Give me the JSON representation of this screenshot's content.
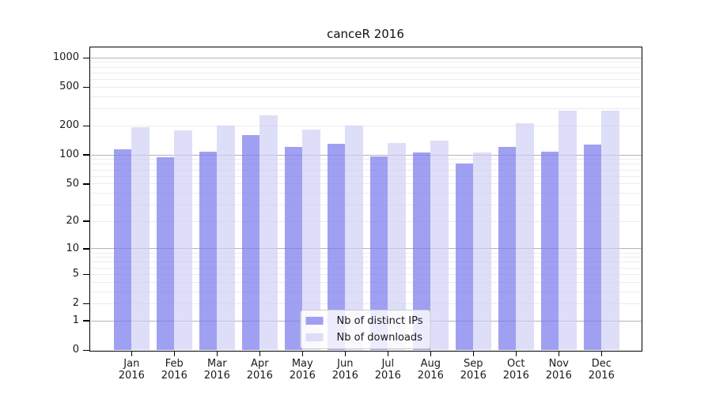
{
  "chart_data": {
    "type": "bar",
    "title": "canceR 2016",
    "categories": [
      "Jan",
      "Feb",
      "Mar",
      "Apr",
      "May",
      "Jun",
      "Jul",
      "Aug",
      "Sep",
      "Oct",
      "Nov",
      "Dec"
    ],
    "year_label": "2016",
    "series": [
      {
        "name": "Nb of distinct IPs",
        "values": [
          114,
          94,
          108,
          160,
          122,
          130,
          96,
          107,
          82,
          120,
          108,
          129
        ]
      },
      {
        "name": "Nb of downloads",
        "values": [
          192,
          181,
          201,
          258,
          184,
          202,
          133,
          140,
          107,
          211,
          285,
          285
        ]
      }
    ],
    "yscale": "log10(value+1)",
    "ytick_labels": [
      1000,
      500,
      200,
      100,
      50,
      20,
      10,
      5,
      2,
      1,
      0
    ],
    "grid_major_values": [
      1,
      10,
      100,
      1000
    ],
    "grid_minor_values": [
      2,
      3,
      4,
      5,
      6,
      7,
      8,
      9,
      20,
      30,
      40,
      50,
      60,
      70,
      80,
      90,
      200,
      300,
      400,
      500,
      600,
      700,
      800,
      900
    ],
    "ylim": [
      0,
      1270
    ],
    "xlabel": "",
    "ylabel": "",
    "grid": "horizontal",
    "legend_position": "lower center",
    "colors": {
      "distinct_ips": "rgba(123,123,237,0.72)",
      "downloads": "rgba(205,205,246,0.66)",
      "grid_minor": "#ececec",
      "grid_major": "#b3b3b3",
      "axis": "#000000",
      "text": "#1a1a1a",
      "legend_border": "#cccccc",
      "legend_bg": "rgba(255,255,255,0.8)"
    }
  }
}
